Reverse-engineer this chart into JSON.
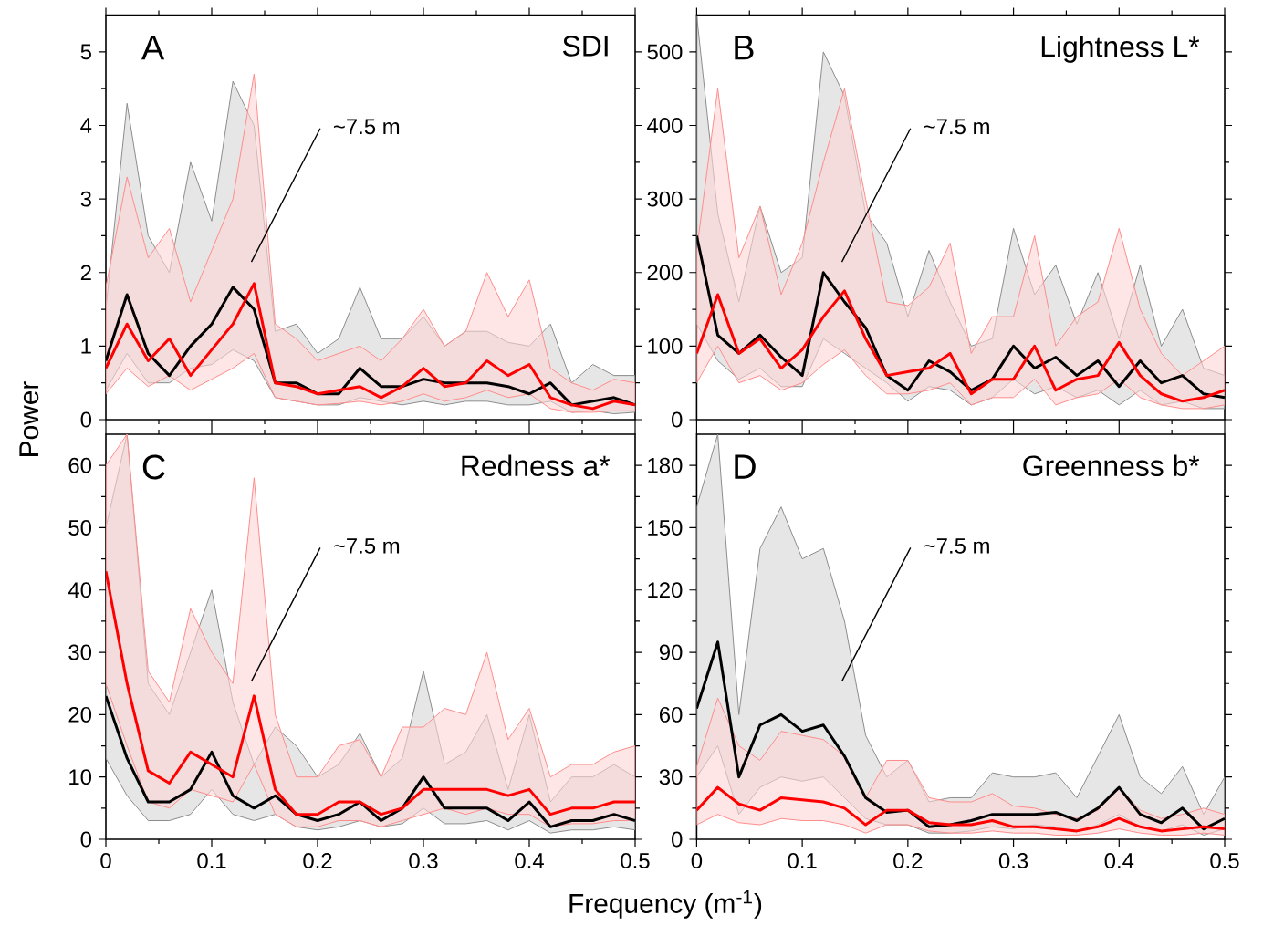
{
  "chart_data": [
    {
      "type": "line",
      "title": "SDI",
      "ylabel": "Power",
      "annotations": [
        "A",
        "~7.5 m"
      ],
      "tick_labels": "y",
      "x": [
        0,
        0.02,
        0.04,
        0.06,
        0.08,
        0.1,
        0.12,
        0.14,
        0.16,
        0.18,
        0.2,
        0.22,
        0.24,
        0.26,
        0.28,
        0.3,
        0.32,
        0.34,
        0.36,
        0.38,
        0.4,
        0.42,
        0.44,
        0.46,
        0.48,
        0.5
      ],
      "xlim": [
        0,
        0.5
      ],
      "xticks": [
        0,
        0.1,
        0.2,
        0.3,
        0.4,
        0.5
      ],
      "ylim": [
        0,
        5.5
      ],
      "yticks": [
        0,
        1,
        2,
        3,
        4,
        5
      ],
      "series": [
        {
          "color": "#000000",
          "values": [
            0.8,
            1.7,
            0.9,
            0.6,
            1.0,
            1.3,
            1.8,
            1.5,
            0.5,
            0.5,
            0.35,
            0.35,
            0.7,
            0.45,
            0.45,
            0.55,
            0.5,
            0.5,
            0.5,
            0.45,
            0.35,
            0.5,
            0.2,
            0.25,
            0.3,
            0.2
          ],
          "lower": [
            0.4,
            0.9,
            0.5,
            0.5,
            0.7,
            0.75,
            0.95,
            0.8,
            0.3,
            0.25,
            0.2,
            0.2,
            0.3,
            0.25,
            0.2,
            0.25,
            0.2,
            0.25,
            0.25,
            0.2,
            0.2,
            0.25,
            0.1,
            0.12,
            0.08,
            0.1
          ],
          "upper": [
            1.5,
            4.3,
            2.5,
            2.0,
            3.5,
            2.7,
            4.6,
            4.0,
            1.2,
            1.3,
            0.9,
            1.1,
            1.8,
            1.1,
            1.1,
            1.4,
            1.0,
            1.2,
            1.2,
            1.05,
            1.0,
            1.3,
            0.5,
            0.75,
            0.6,
            0.6
          ]
        },
        {
          "color": "#ff0000",
          "values": [
            0.7,
            1.3,
            0.8,
            1.1,
            0.6,
            0.95,
            1.3,
            1.85,
            0.5,
            0.45,
            0.35,
            0.4,
            0.45,
            0.3,
            0.45,
            0.7,
            0.45,
            0.5,
            0.8,
            0.6,
            0.75,
            0.3,
            0.2,
            0.15,
            0.25,
            0.2
          ],
          "lower": [
            0.35,
            0.7,
            0.45,
            0.6,
            0.4,
            0.55,
            0.7,
            0.9,
            0.3,
            0.25,
            0.2,
            0.22,
            0.25,
            0.2,
            0.25,
            0.35,
            0.25,
            0.3,
            0.4,
            0.3,
            0.35,
            0.15,
            0.1,
            0.1,
            0.12,
            0.12
          ],
          "upper": [
            1.8,
            3.3,
            2.2,
            2.6,
            1.6,
            2.3,
            3.0,
            4.7,
            1.3,
            1.1,
            0.8,
            0.9,
            1.0,
            0.8,
            1.1,
            1.5,
            1.0,
            1.2,
            2.0,
            1.4,
            1.9,
            0.7,
            0.5,
            0.4,
            0.55,
            0.5
          ]
        }
      ]
    },
    {
      "type": "line",
      "title": "Lightness L*",
      "annotations": [
        "B",
        "~7.5 m"
      ],
      "tick_labels": "y",
      "x": [
        0,
        0.02,
        0.04,
        0.06,
        0.08,
        0.1,
        0.12,
        0.14,
        0.16,
        0.18,
        0.2,
        0.22,
        0.24,
        0.26,
        0.28,
        0.3,
        0.32,
        0.34,
        0.36,
        0.38,
        0.4,
        0.42,
        0.44,
        0.46,
        0.48,
        0.5
      ],
      "xlim": [
        0,
        0.5
      ],
      "xticks": [
        0,
        0.1,
        0.2,
        0.3,
        0.4,
        0.5
      ],
      "ylim": [
        0,
        550
      ],
      "yticks": [
        0,
        100,
        200,
        300,
        400,
        500
      ],
      "series": [
        {
          "color": "#000000",
          "values": [
            250,
            115,
            90,
            115,
            85,
            60,
            200,
            160,
            125,
            60,
            40,
            80,
            65,
            40,
            55,
            100,
            70,
            85,
            60,
            80,
            45,
            80,
            50,
            60,
            35,
            30
          ],
          "lower": [
            130,
            80,
            55,
            70,
            45,
            45,
            110,
            90,
            70,
            50,
            25,
            45,
            40,
            20,
            30,
            55,
            35,
            45,
            30,
            40,
            20,
            40,
            20,
            25,
            15,
            15
          ],
          "upper": [
            550,
            280,
            160,
            290,
            200,
            220,
            500,
            440,
            280,
            240,
            140,
            230,
            160,
            100,
            110,
            260,
            170,
            210,
            130,
            200,
            110,
            210,
            100,
            150,
            70,
            60
          ]
        },
        {
          "color": "#ff0000",
          "values": [
            90,
            170,
            90,
            110,
            70,
            95,
            140,
            175,
            110,
            60,
            65,
            70,
            90,
            35,
            55,
            55,
            100,
            40,
            55,
            60,
            105,
            60,
            35,
            25,
            30,
            40
          ],
          "lower": [
            50,
            100,
            50,
            60,
            40,
            50,
            75,
            95,
            60,
            35,
            35,
            40,
            50,
            20,
            30,
            30,
            55,
            20,
            30,
            35,
            55,
            30,
            20,
            15,
            15,
            20
          ],
          "upper": [
            230,
            450,
            220,
            290,
            170,
            240,
            350,
            450,
            300,
            160,
            155,
            180,
            240,
            90,
            140,
            140,
            250,
            100,
            140,
            160,
            260,
            150,
            90,
            60,
            80,
            100
          ]
        }
      ]
    },
    {
      "type": "line",
      "title": "Redness a*",
      "xlabel": "Frequency (m$^{-1}$)",
      "annotations": [
        "C",
        "~7.5 m"
      ],
      "x": [
        0,
        0.02,
        0.04,
        0.06,
        0.08,
        0.1,
        0.12,
        0.14,
        0.16,
        0.18,
        0.2,
        0.22,
        0.24,
        0.26,
        0.28,
        0.3,
        0.32,
        0.34,
        0.36,
        0.38,
        0.4,
        0.42,
        0.44,
        0.46,
        0.48,
        0.5
      ],
      "xlim": [
        0,
        0.5
      ],
      "xticks": [
        0,
        0.1,
        0.2,
        0.3,
        0.4,
        0.5
      ],
      "ylim": [
        0,
        65
      ],
      "yticks": [
        0,
        10,
        20,
        30,
        40,
        50,
        60
      ],
      "series": [
        {
          "color": "#000000",
          "values": [
            23,
            13,
            6,
            6,
            8,
            14,
            7,
            5,
            7,
            4,
            3,
            4,
            6,
            3,
            5,
            10,
            5,
            5,
            5,
            3,
            6,
            2,
            3,
            3,
            4,
            3
          ],
          "lower": [
            13,
            7,
            3,
            3,
            4,
            8,
            4,
            3,
            4,
            2,
            1.5,
            2,
            3,
            2,
            2.5,
            5,
            2.5,
            2.5,
            3,
            1.5,
            3,
            1,
            1.5,
            1.5,
            2,
            1.5
          ],
          "upper": [
            50,
            65,
            25,
            20,
            30,
            40,
            22,
            12,
            18,
            15,
            10,
            12,
            17,
            10,
            13,
            27,
            12,
            14,
            20,
            8,
            20,
            6,
            10,
            10,
            12,
            10
          ]
        },
        {
          "color": "#ff0000",
          "values": [
            43,
            25,
            11,
            9,
            14,
            12,
            10,
            23,
            8,
            4,
            4,
            6,
            6,
            4,
            5,
            8,
            8,
            8,
            8,
            7,
            8,
            4,
            5,
            5,
            6,
            6
          ],
          "lower": [
            25,
            15,
            6,
            5,
            8,
            7,
            6,
            12,
            4,
            2,
            2,
            3,
            3,
            2,
            3,
            4,
            5,
            4,
            5,
            4,
            4,
            2,
            2.5,
            2.5,
            3,
            3
          ],
          "upper": [
            60,
            65,
            27,
            22,
            37,
            30,
            25,
            58,
            20,
            10,
            10,
            15,
            16,
            10,
            18,
            18,
            21,
            20,
            30,
            16,
            21,
            10,
            12,
            12,
            14,
            15
          ]
        }
      ]
    },
    {
      "type": "line",
      "title": "Greenness b*",
      "annotations": [
        "D",
        "~7.5 m"
      ],
      "x": [
        0,
        0.02,
        0.04,
        0.06,
        0.08,
        0.1,
        0.12,
        0.14,
        0.16,
        0.18,
        0.2,
        0.22,
        0.24,
        0.26,
        0.28,
        0.3,
        0.32,
        0.34,
        0.36,
        0.38,
        0.4,
        0.42,
        0.44,
        0.46,
        0.48,
        0.5
      ],
      "xlim": [
        0,
        0.5
      ],
      "xticks": [
        0,
        0.1,
        0.2,
        0.3,
        0.4,
        0.5
      ],
      "ylim": [
        0,
        195
      ],
      "yticks": [
        0,
        30,
        60,
        90,
        120,
        150,
        180
      ],
      "series": [
        {
          "color": "#000000",
          "values": [
            63,
            95,
            30,
            55,
            60,
            52,
            55,
            40,
            20,
            13,
            14,
            6,
            7,
            9,
            12,
            12,
            12,
            13,
            9,
            15,
            25,
            12,
            8,
            15,
            5,
            10
          ],
          "lower": [
            30,
            45,
            12,
            25,
            30,
            28,
            30,
            20,
            10,
            7,
            7,
            3,
            3,
            4,
            6,
            5,
            7,
            6,
            4,
            7,
            12,
            6,
            4,
            7,
            2,
            5
          ],
          "upper": [
            160,
            195,
            60,
            140,
            160,
            135,
            140,
            105,
            50,
            30,
            38,
            18,
            20,
            20,
            32,
            30,
            30,
            32,
            20,
            40,
            60,
            30,
            22,
            35,
            12,
            30
          ]
        },
        {
          "color": "#ff0000",
          "values": [
            14,
            25,
            17,
            14,
            20,
            19,
            18,
            15,
            7,
            14,
            14,
            8,
            7,
            7,
            9,
            6,
            6,
            5,
            4,
            6,
            10,
            6,
            4,
            5,
            6,
            5
          ],
          "lower": [
            7,
            12,
            8,
            7,
            10,
            9,
            9,
            7,
            3,
            7,
            7,
            4,
            3,
            3,
            4,
            3,
            3,
            2,
            2,
            3,
            5,
            3,
            2,
            2,
            3,
            2
          ],
          "upper": [
            35,
            68,
            45,
            38,
            52,
            50,
            48,
            40,
            20,
            38,
            38,
            20,
            18,
            18,
            22,
            16,
            15,
            12,
            10,
            14,
            25,
            14,
            10,
            12,
            15,
            12
          ]
        }
      ]
    }
  ]
}
